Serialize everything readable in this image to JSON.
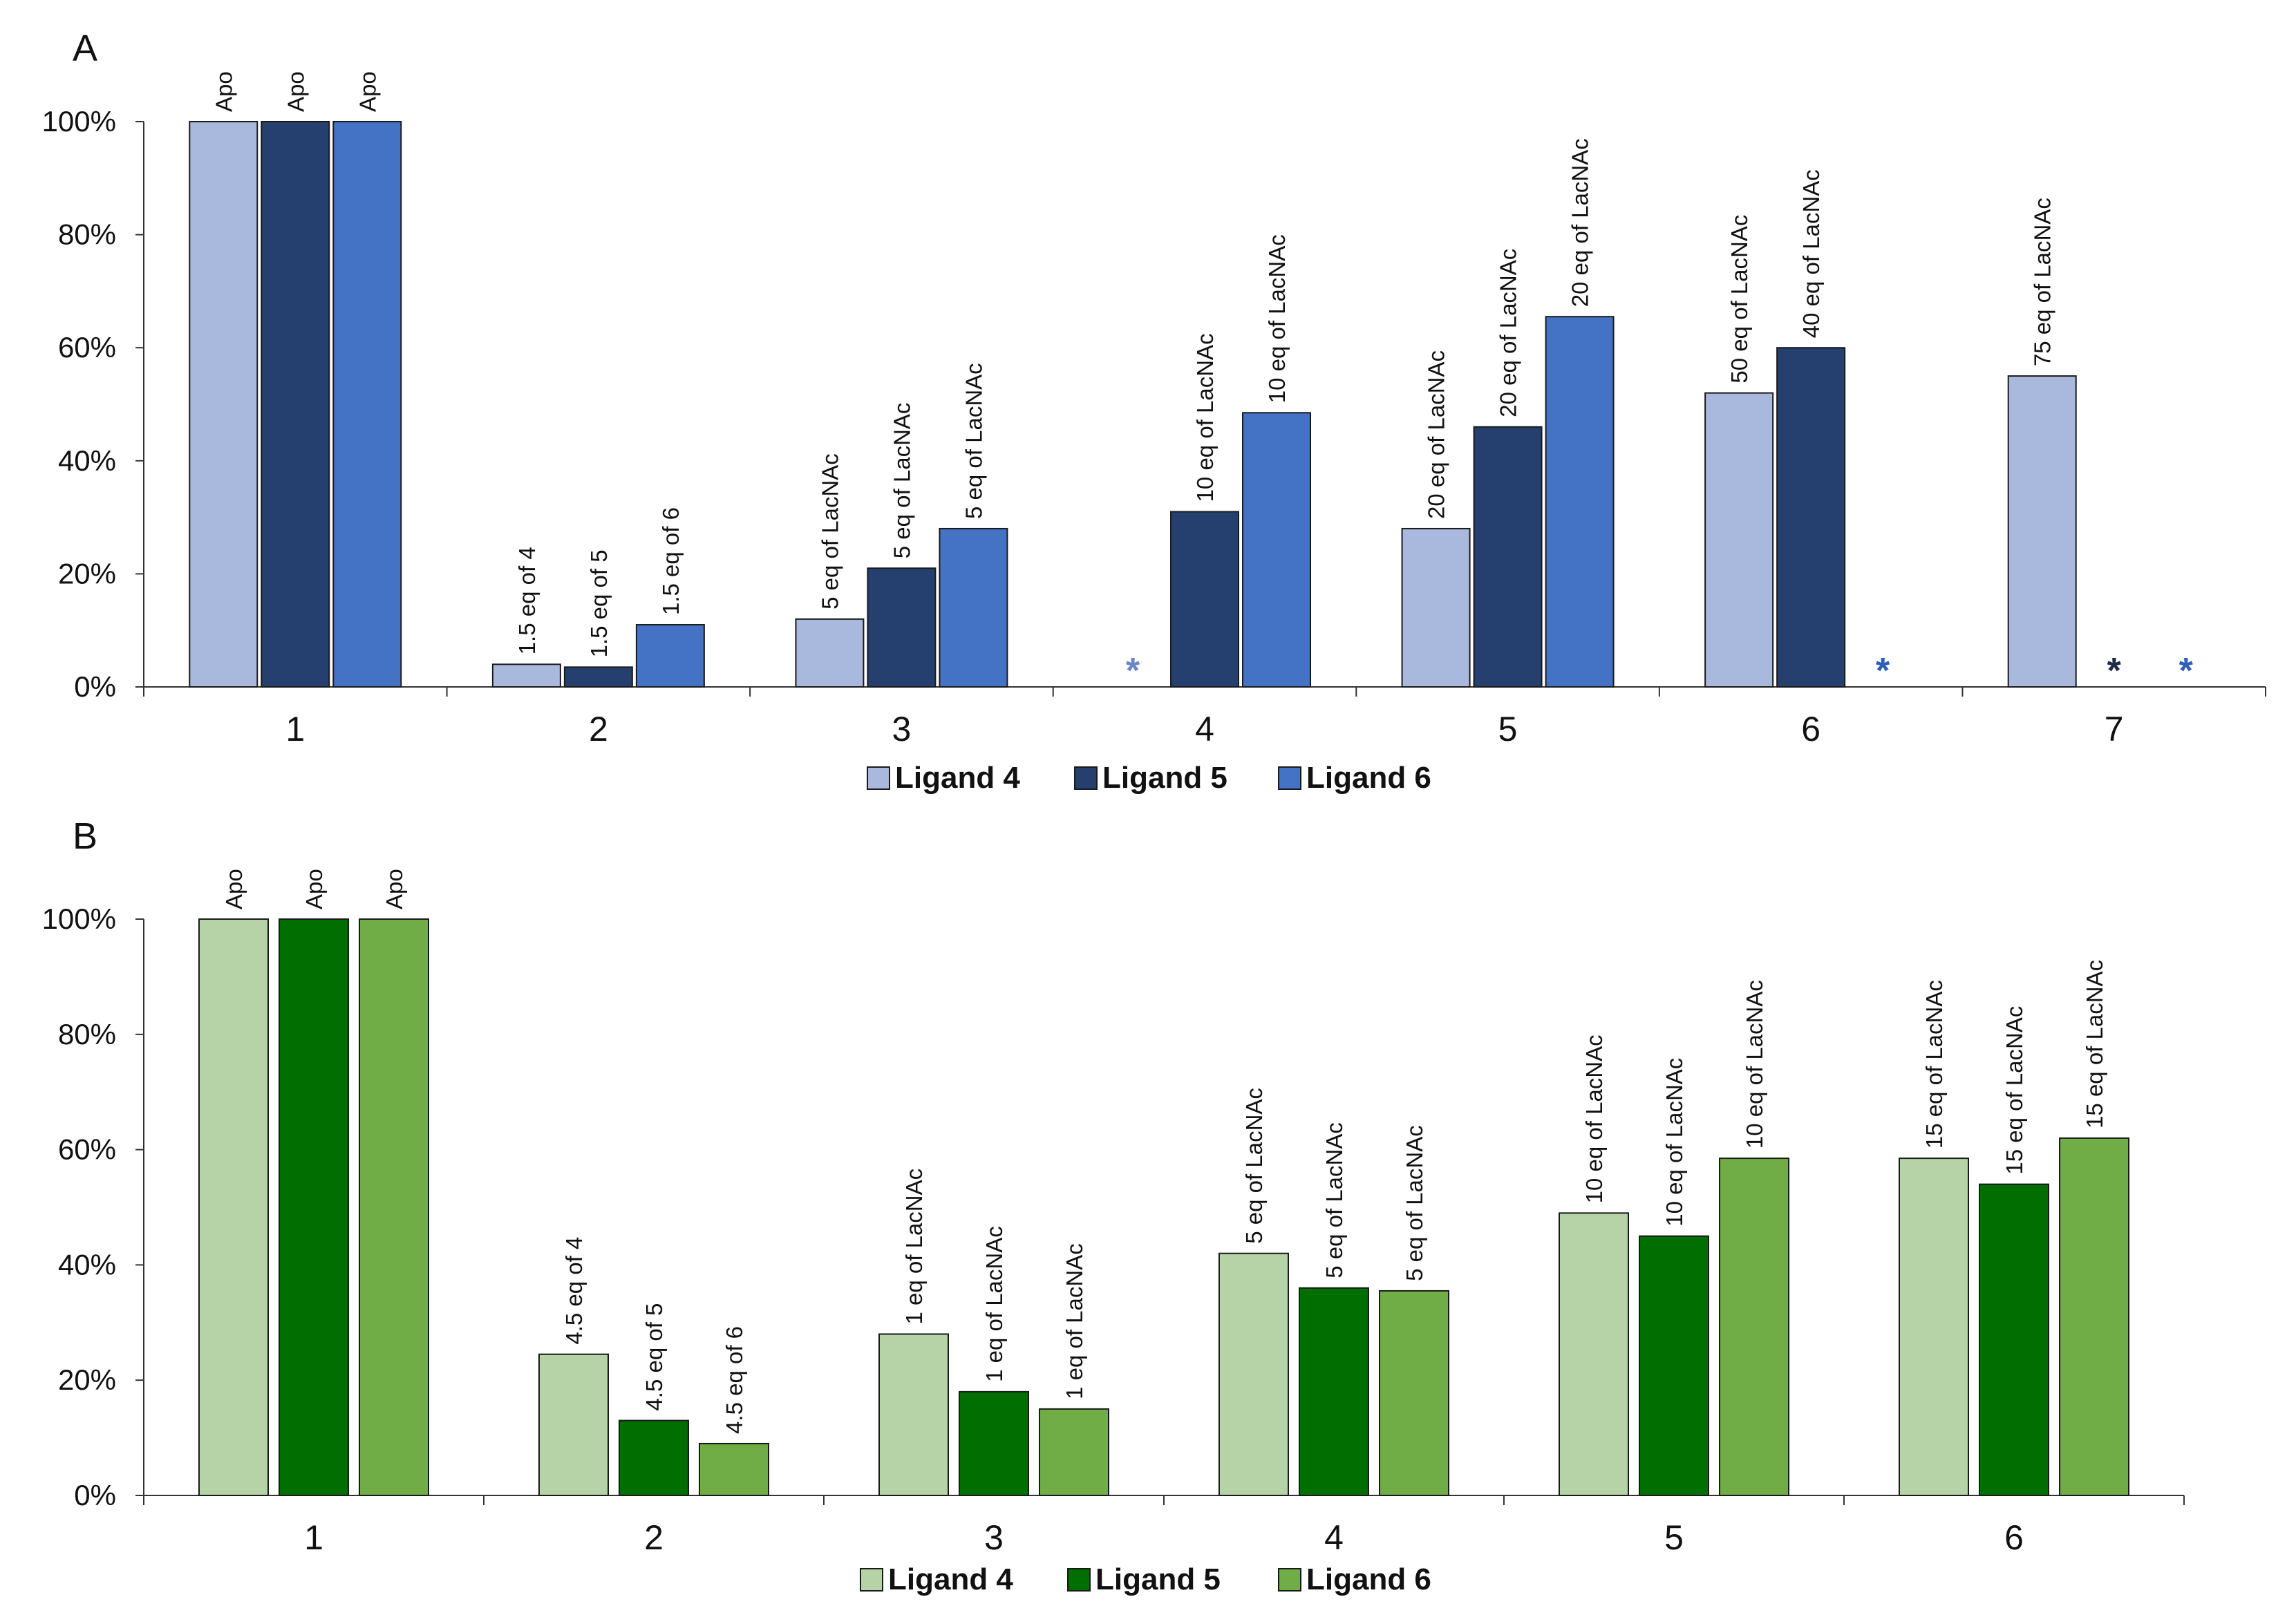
{
  "chart_data": [
    {
      "panel": "A",
      "type": "bar",
      "categories": [
        "1",
        "2",
        "3",
        "4",
        "5",
        "6",
        "7"
      ],
      "ylim": [
        0,
        100
      ],
      "yticks": [
        "0%",
        "20%",
        "40%",
        "60%",
        "80%",
        "100%"
      ],
      "title": "",
      "xlabel": "",
      "ylabel": "",
      "legend": "bottom",
      "series": [
        {
          "name": "Ligand 4",
          "color": "#a9b8dd",
          "values": [
            100,
            4,
            12,
            null,
            28,
            52,
            55
          ],
          "labels": [
            "Apo",
            "1.5 eq of 4",
            "5 eq of LacNAc",
            "",
            "20 eq of LacNAc",
            "50 eq of LacNAc",
            "75 eq of LacNAc"
          ],
          "markers": [
            "",
            "",
            "",
            "*",
            "",
            "",
            ""
          ]
        },
        {
          "name": "Ligand 5",
          "color": "#253f6f",
          "values": [
            100,
            3.5,
            21,
            31,
            46,
            60,
            null
          ],
          "labels": [
            "Apo",
            "1.5 eq of 5",
            "5 eq of LacNAc",
            "10 eq of LacNAc",
            "20 eq of LacNAc",
            "40 eq of LacNAc",
            ""
          ],
          "markers": [
            "",
            "",
            "",
            "",
            "",
            "",
            "*"
          ]
        },
        {
          "name": "Ligand 6",
          "color": "#4472c4",
          "values": [
            100,
            11,
            28,
            48.5,
            65.5,
            null,
            null
          ],
          "labels": [
            "Apo",
            "1.5 eq of 6",
            "5 eq of LacNAc",
            "10 eq of LacNAc",
            "20 eq of LacNAc",
            "",
            ""
          ],
          "markers": [
            "",
            "",
            "",
            "",
            "",
            "*",
            "*"
          ]
        }
      ]
    },
    {
      "panel": "B",
      "type": "bar",
      "categories": [
        "1",
        "2",
        "3",
        "4",
        "5",
        "6"
      ],
      "ylim": [
        0,
        100
      ],
      "yticks": [
        "0%",
        "20%",
        "40%",
        "60%",
        "80%",
        "100%"
      ],
      "title": "",
      "xlabel": "",
      "ylabel": "",
      "legend": "bottom",
      "series": [
        {
          "name": "Ligand 4",
          "color": "#b5d3a6",
          "values": [
            100,
            24.5,
            28,
            42,
            49,
            58.5
          ],
          "labels": [
            "Apo",
            "4.5 eq of 4",
            "1 eq of LacNAc",
            "5 eq of LacNAc",
            "10 eq of LacNAc",
            "15 eq of LacNAc"
          ],
          "markers": [
            "",
            "",
            "",
            "",
            "",
            ""
          ]
        },
        {
          "name": "Ligand 5",
          "color": "#006e00",
          "values": [
            100,
            13,
            18,
            36,
            45,
            54
          ],
          "labels": [
            "Apo",
            "4.5 eq of 5",
            "1 eq of LacNAc",
            "5 eq of LacNAc",
            "10 eq of LacNAc",
            "15 eq of LacNAc"
          ],
          "markers": [
            "",
            "",
            "",
            "",
            "",
            ""
          ]
        },
        {
          "name": "Ligand 6",
          "color": "#70ad47",
          "values": [
            100,
            9,
            15,
            35.5,
            58.5,
            62
          ],
          "labels": [
            "Apo",
            "4.5 eq of 6",
            "1 eq of LacNAc",
            "5 eq of LacNAc",
            "10 eq of LacNAc",
            "15 eq of LacNAc"
          ],
          "markers": [
            "",
            "",
            "",
            "",
            "",
            ""
          ]
        }
      ]
    }
  ],
  "colors": {
    "marker_A_ligand4": "#6a86c6",
    "marker_A_ligand5": "#1f2a44",
    "marker_A_ligand6": "#2f5db8",
    "axis": "#333333"
  }
}
